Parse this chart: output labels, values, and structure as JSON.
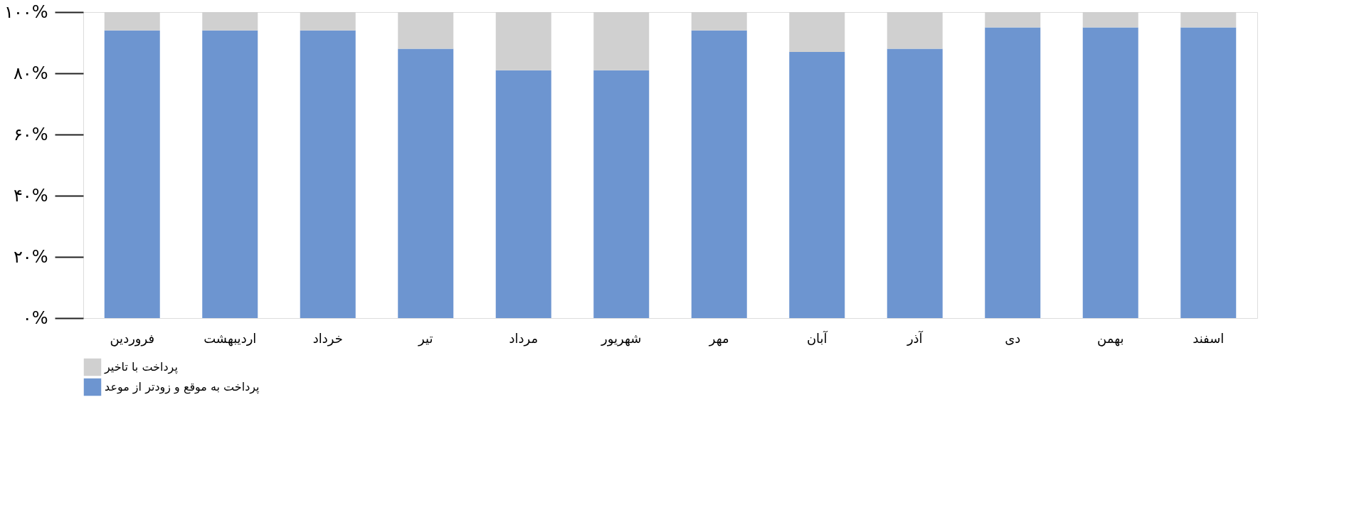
{
  "chart_data": {
    "type": "bar",
    "stacked": true,
    "legend": "bottom",
    "grid": false,
    "categories": [
      "فروردین",
      "اردیبهشت",
      "خرداد",
      "تیر",
      "مرداد",
      "شهریور",
      "مهر",
      "آبان",
      "آذر",
      "دی",
      "بهمن",
      "اسفند"
    ],
    "series": [
      {
        "name": "پرداخت به موقع و زودتر از موعد",
        "color": "#6d95d0",
        "values": [
          94,
          94,
          94,
          88,
          81,
          81,
          94,
          87,
          88,
          95,
          95,
          95
        ]
      },
      {
        "name": "پرداخت با تاخیر",
        "color": "#d0d0d0",
        "values": [
          6,
          6,
          6,
          12,
          19,
          19,
          6,
          13,
          12,
          5,
          5,
          5
        ]
      }
    ],
    "ylim": [
      0,
      100
    ],
    "yticks": [
      {
        "value": 0,
        "label": "۰%"
      },
      {
        "value": 20,
        "label": "۲۰%"
      },
      {
        "value": 40,
        "label": "۴۰%"
      },
      {
        "value": 60,
        "label": "۶۰%"
      },
      {
        "value": 80,
        "label": "۸۰%"
      },
      {
        "value": 100,
        "label": "۱۰۰%"
      }
    ]
  }
}
